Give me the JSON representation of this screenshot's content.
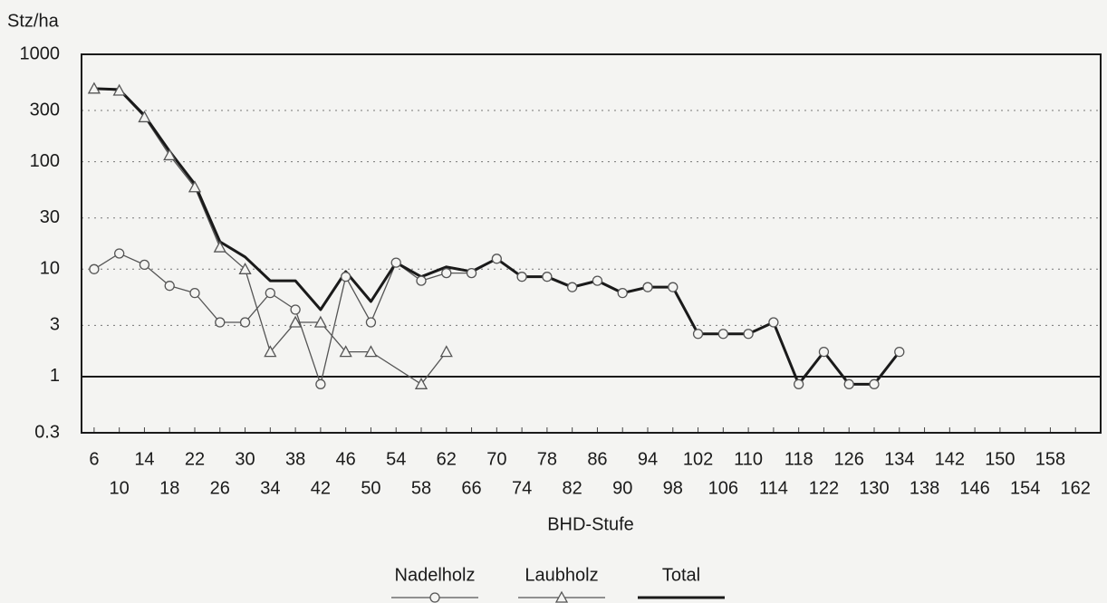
{
  "chart_data": {
    "type": "line",
    "ylabel": "Stz/ha",
    "xlabel": "BHD-Stufe",
    "xlim": [
      4,
      166
    ],
    "xticks": [
      6,
      10,
      14,
      18,
      22,
      26,
      30,
      34,
      38,
      42,
      46,
      50,
      54,
      58,
      62,
      66,
      70,
      74,
      78,
      82,
      86,
      90,
      94,
      98,
      102,
      106,
      110,
      114,
      118,
      122,
      126,
      130,
      134,
      138,
      142,
      146,
      150,
      154,
      158,
      162
    ],
    "ylim": [
      0.3,
      1000
    ],
    "yticks": [
      0.3,
      1,
      3,
      10,
      30,
      100,
      300,
      1000
    ],
    "log_y": true,
    "grid": true,
    "hline": 1,
    "legend": "bottom",
    "series": [
      {
        "name": "Nadelholz",
        "color": "#555555",
        "marker": "circle",
        "x": [
          6,
          10,
          14,
          18,
          22,
          26,
          30,
          34,
          38,
          42,
          46,
          50,
          54,
          58,
          62,
          66,
          70,
          74,
          78,
          82,
          86,
          90,
          94,
          98,
          102,
          106,
          110,
          114,
          118,
          122,
          126,
          130,
          134
        ],
        "values": [
          10,
          14,
          11,
          7,
          6,
          3.2,
          3.2,
          6,
          4.2,
          0.85,
          8.5,
          3.2,
          11.5,
          7.8,
          9.2,
          9.2,
          12.5,
          8.5,
          8.5,
          6.8,
          7.8,
          6,
          6.8,
          6.8,
          2.5,
          2.5,
          2.5,
          3.2,
          0.85,
          1.7,
          0.85,
          0.85,
          1.7
        ]
      },
      {
        "name": "Laubholz",
        "color": "#555555",
        "marker": "triangle",
        "x": [
          6,
          10,
          14,
          18,
          22,
          26,
          30,
          34,
          38,
          42,
          46,
          50,
          58,
          62
        ],
        "values": [
          480,
          460,
          260,
          115,
          58,
          16,
          10,
          1.7,
          3.2,
          3.2,
          1.7,
          1.7,
          0.85,
          1.7
        ]
      },
      {
        "name": "Total",
        "color": "#1a1a1a",
        "marker": "none",
        "x": [
          6,
          10,
          14,
          18,
          22,
          26,
          30,
          34,
          38,
          42,
          46,
          50,
          54,
          58,
          62,
          66,
          70,
          74,
          78,
          82,
          86,
          90,
          94,
          98,
          102,
          106,
          110,
          114,
          118,
          122,
          126,
          130,
          134
        ],
        "values": [
          480,
          470,
          270,
          125,
          62,
          18,
          13,
          7.8,
          7.8,
          4.2,
          9.5,
          5,
          11.5,
          8.5,
          10.5,
          9.5,
          12.5,
          8.5,
          8.5,
          6.8,
          7.8,
          6,
          6.8,
          6.8,
          2.5,
          2.5,
          2.5,
          3.2,
          0.85,
          1.7,
          0.85,
          0.85,
          1.7
        ]
      }
    ]
  }
}
